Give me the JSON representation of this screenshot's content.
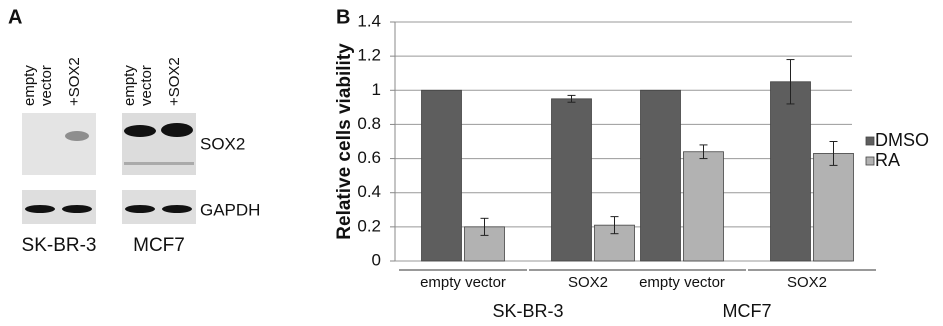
{
  "panel_a": {
    "label": "A",
    "blots": [
      {
        "cell_line": "SK-BR-3",
        "lanes": [
          [
            "empty",
            "vector"
          ],
          [
            "+SOX2"
          ]
        ]
      },
      {
        "cell_line": "MCF7",
        "lanes": [
          [
            "empty",
            "vector"
          ],
          [
            "+SOX2"
          ]
        ]
      }
    ],
    "bands": [
      "SOX2",
      "GAPDH"
    ]
  },
  "chart_data": {
    "type": "bar",
    "panel_label": "B",
    "ylabel": "Relative cells viability",
    "categories": [
      "empty vector",
      "SOX2",
      "empty vector",
      "SOX2"
    ],
    "groups": [
      "SK-BR-3",
      "MCF7"
    ],
    "series": [
      {
        "name": "DMSO",
        "color": "#5e5e5e",
        "values": [
          1,
          0.95,
          1,
          1.05
        ],
        "errors": [
          null,
          0.02,
          null,
          0.13
        ]
      },
      {
        "name": "RA",
        "color": "#b2b2b2",
        "values": [
          0.2,
          0.21,
          0.64,
          0.63
        ],
        "errors": [
          0.05,
          0.05,
          0.04,
          0.07
        ]
      }
    ],
    "ylim": [
      0,
      1.4
    ],
    "yticks": [
      0,
      0.2,
      0.4,
      0.6,
      0.8,
      1,
      1.2,
      1.4
    ],
    "grid": true,
    "legend": "right"
  }
}
